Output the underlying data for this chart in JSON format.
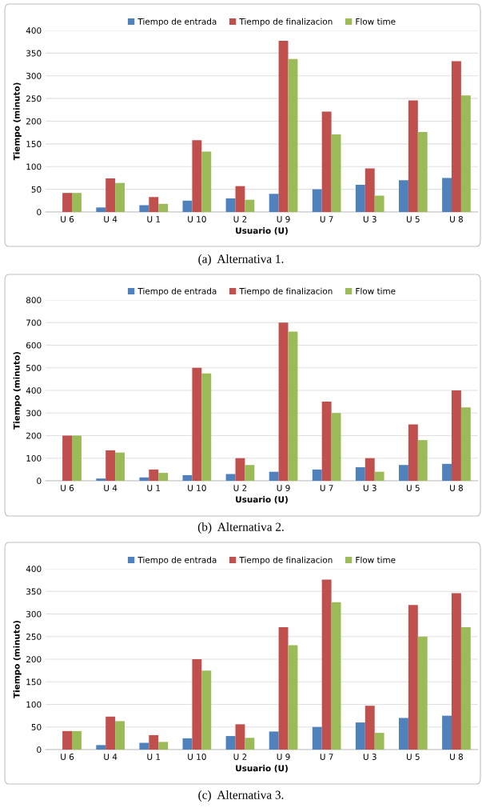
{
  "chart_data": [
    {
      "type": "bar",
      "categories": [
        "U 6",
        "U 4",
        "U 1",
        "U 10",
        "U 2",
        "U 9",
        "U 7",
        "U 3",
        "U 5",
        "U 8"
      ],
      "xlabel": "Usuario (U)",
      "ylabel": "Tiempo (minuto)",
      "ylim": [
        0,
        400
      ],
      "yticks": [
        0,
        50,
        100,
        150,
        200,
        250,
        300,
        350,
        400
      ],
      "grid": "y",
      "legend": "top",
      "annotations": [
        "(a)  Alternativa 1."
      ],
      "series": [
        {
          "name": "Tiempo de entrada",
          "color": "#4f81bd",
          "values": [
            0,
            10,
            15,
            25,
            30,
            40,
            50,
            60,
            70,
            75
          ]
        },
        {
          "name": "Tiempo de finalizacion",
          "color": "#c0504d",
          "values": [
            42,
            74,
            33,
            158,
            57,
            377,
            221,
            96,
            246,
            332
          ]
        },
        {
          "name": "Flow time",
          "color": "#9bbb59",
          "values": [
            42,
            64,
            18,
            133,
            27,
            337,
            171,
            36,
            176,
            257
          ]
        }
      ]
    },
    {
      "type": "bar",
      "categories": [
        "U 6",
        "U 4",
        "U 1",
        "U 10",
        "U 2",
        "U 9",
        "U 7",
        "U 3",
        "U 5",
        "U 8"
      ],
      "xlabel": "Usuario (U)",
      "ylabel": "Tiempo (minuto)",
      "ylim": [
        0,
        800
      ],
      "yticks": [
        0,
        100,
        200,
        300,
        400,
        500,
        600,
        700,
        800
      ],
      "grid": "y",
      "legend": "top",
      "annotations": [
        "(b)  Alternativa 2."
      ],
      "series": [
        {
          "name": "Tiempo de entrada",
          "color": "#4f81bd",
          "values": [
            0,
            10,
            15,
            25,
            30,
            40,
            50,
            60,
            70,
            75
          ]
        },
        {
          "name": "Tiempo de finalizacion",
          "color": "#c0504d",
          "values": [
            200,
            135,
            50,
            500,
            100,
            700,
            350,
            100,
            250,
            400
          ]
        },
        {
          "name": "Flow time",
          "color": "#9bbb59",
          "values": [
            200,
            125,
            35,
            475,
            70,
            660,
            300,
            40,
            180,
            325
          ]
        }
      ]
    },
    {
      "type": "bar",
      "categories": [
        "U 6",
        "U 4",
        "U 1",
        "U 10",
        "U 2",
        "U 9",
        "U 7",
        "U 3",
        "U 5",
        "U 8"
      ],
      "xlabel": "Usuario (U)",
      "ylabel": "Tiempo (minuto)",
      "ylim": [
        0,
        400
      ],
      "yticks": [
        0,
        50,
        100,
        150,
        200,
        250,
        300,
        350,
        400
      ],
      "grid": "y",
      "legend": "top",
      "annotations": [
        "(c)  Alternativa 3."
      ],
      "series": [
        {
          "name": "Tiempo de entrada",
          "color": "#4f81bd",
          "values": [
            0,
            10,
            15,
            25,
            30,
            40,
            50,
            60,
            70,
            75
          ]
        },
        {
          "name": "Tiempo de finalizacion",
          "color": "#c0504d",
          "values": [
            41,
            73,
            32,
            200,
            56,
            271,
            376,
            97,
            320,
            346
          ]
        },
        {
          "name": "Flow time",
          "color": "#9bbb59",
          "values": [
            41,
            63,
            17,
            175,
            26,
            231,
            326,
            37,
            250,
            271
          ]
        }
      ]
    }
  ]
}
